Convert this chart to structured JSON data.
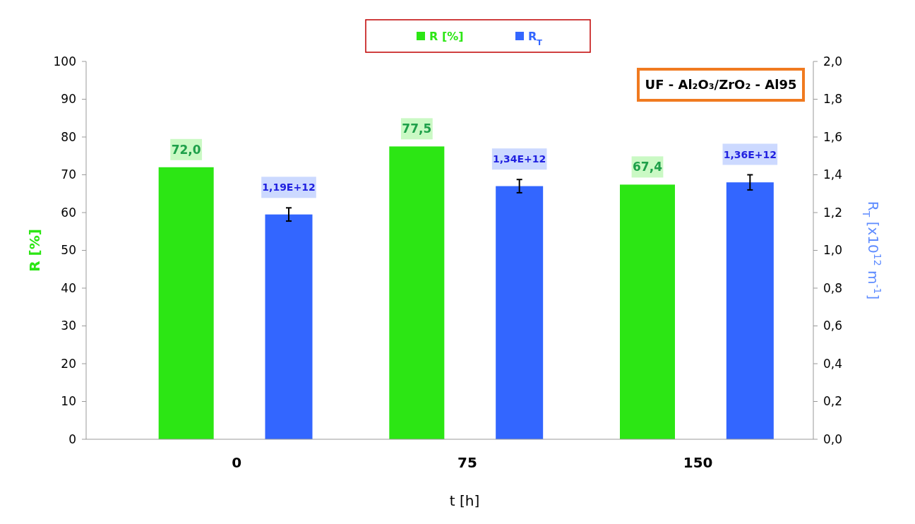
{
  "chart_data": {
    "type": "bar",
    "xlabel": "t [h]",
    "ylabel": "R [%]",
    "y2label": "R$_{T}$ [x10$^{12}$ m$^{-1}$]",
    "categories": [
      "0",
      "75",
      "150"
    ],
    "series": [
      {
        "name": "R [%]",
        "color": "#2ce614",
        "values": [
          72.0,
          77.5,
          67.4
        ],
        "value_labels": [
          "72,0",
          "77,5",
          "67,4"
        ]
      },
      {
        "name": "R$_{T}$",
        "color": "#3366ff",
        "axis": "y2",
        "values": [
          1.19,
          1.34,
          1.36
        ],
        "errors": [
          0.035,
          0.035,
          0.04
        ],
        "value_labels": [
          "1,19E+12",
          "1,34E+12",
          "1,36E+12"
        ]
      }
    ],
    "ylim": [
      0,
      100
    ],
    "yticks": [
      0,
      10,
      20,
      30,
      40,
      50,
      60,
      70,
      80,
      90,
      100
    ],
    "y2lim": [
      0,
      2
    ],
    "y2ticks": [
      {
        "value": 0,
        "label": "0,0"
      },
      {
        "value": 0.2,
        "label": "0,2"
      },
      {
        "value": 0.4,
        "label": "0,4"
      },
      {
        "value": 0.6,
        "label": "0,6"
      },
      {
        "value": 0.8,
        "label": "0,8"
      },
      {
        "value": 1,
        "label": "1,0"
      },
      {
        "value": 1.2,
        "label": "1,2"
      },
      {
        "value": 1.4,
        "label": "1,4"
      },
      {
        "value": 1.6,
        "label": "1,6"
      },
      {
        "value": 1.8,
        "label": "1,8"
      },
      {
        "value": 2,
        "label": "2,0"
      }
    ],
    "annotations": [
      "UF - Al₂O₃/ZrO₂ - Al95"
    ],
    "legend": "top",
    "grid": false
  }
}
